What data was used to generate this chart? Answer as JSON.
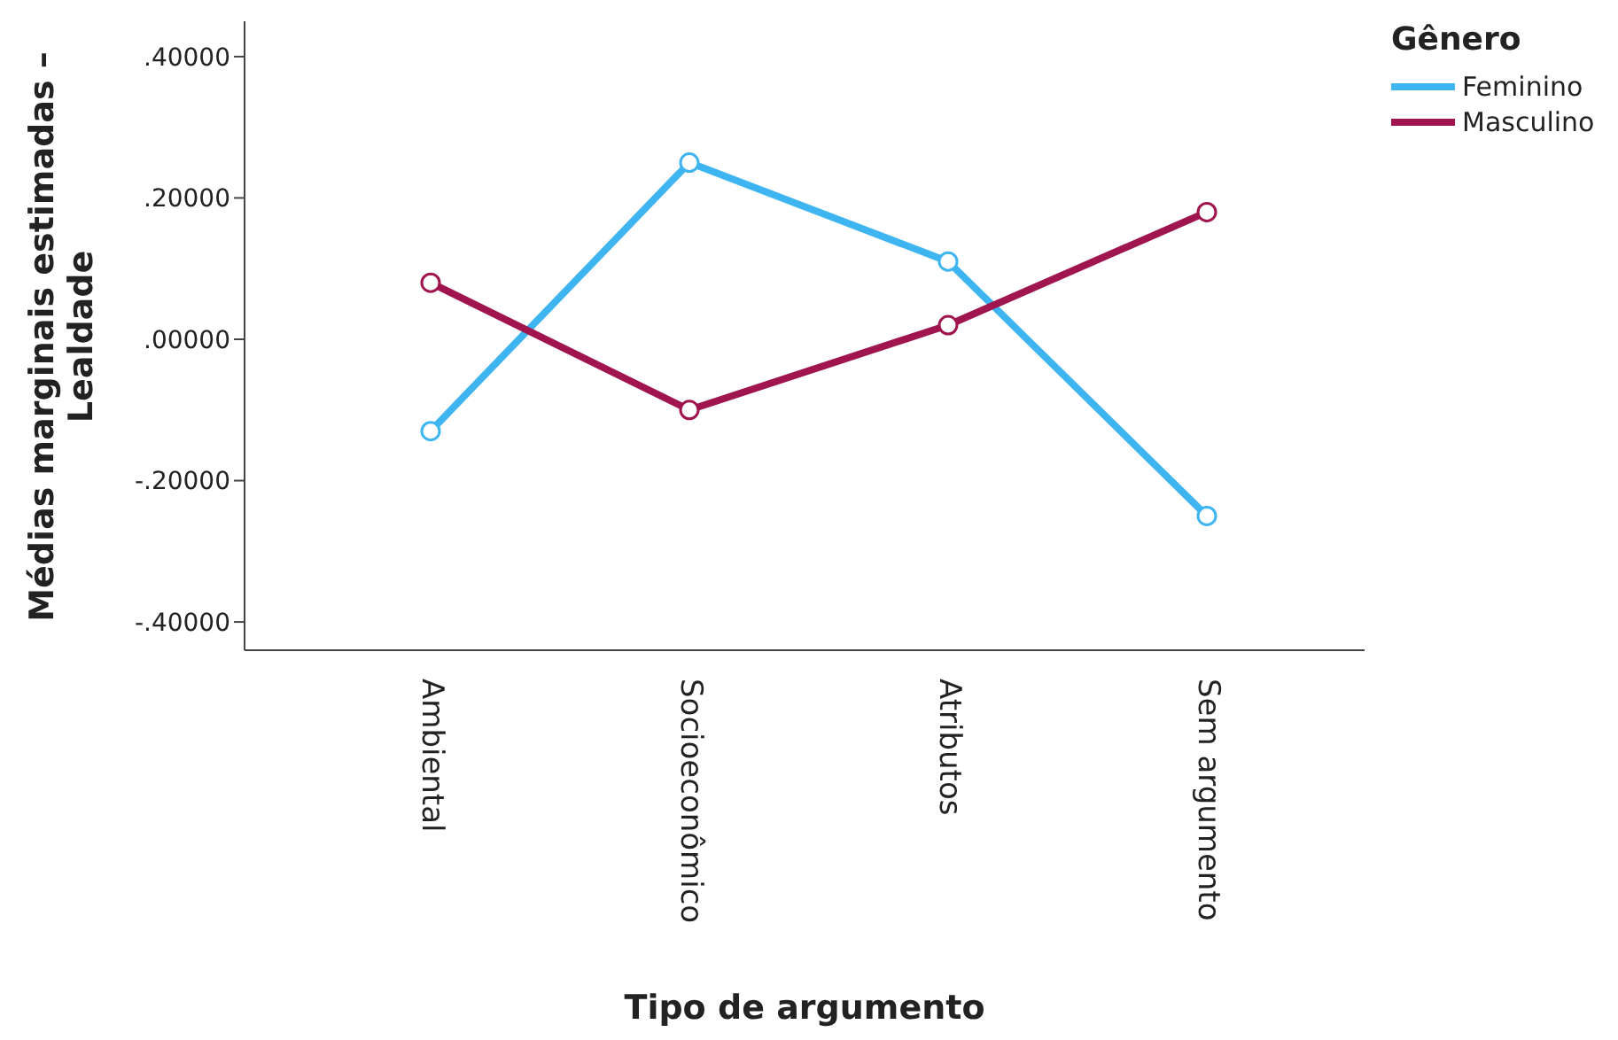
{
  "chart_data": {
    "type": "line",
    "xlabel": "Tipo de argumento",
    "ylabel": "Médias marginais estimadas – Lealdade",
    "legend_title": "Gênero",
    "categories": [
      "Ambiental",
      "Socioeconômico",
      "Atributos",
      "Sem argumento"
    ],
    "series": [
      {
        "name": "Feminino",
        "color": "#3eb5f1",
        "values": [
          -0.13,
          0.25,
          0.11,
          -0.25
        ]
      },
      {
        "name": "Masculino",
        "color": "#a0144f",
        "values": [
          0.08,
          -0.1,
          0.02,
          0.18
        ]
      }
    ],
    "ylim": [
      -0.44,
      0.45
    ],
    "yticks": [
      {
        "value": -0.4,
        "label": "-.40000"
      },
      {
        "value": -0.2,
        "label": "-.20000"
      },
      {
        "value": 0,
        "label": ".00000"
      },
      {
        "value": 0.2,
        "label": ".20000"
      },
      {
        "value": 0.4,
        "label": ".40000"
      }
    ],
    "grid": false,
    "legend": "top right",
    "marker": "circle",
    "line_style": "solid"
  }
}
